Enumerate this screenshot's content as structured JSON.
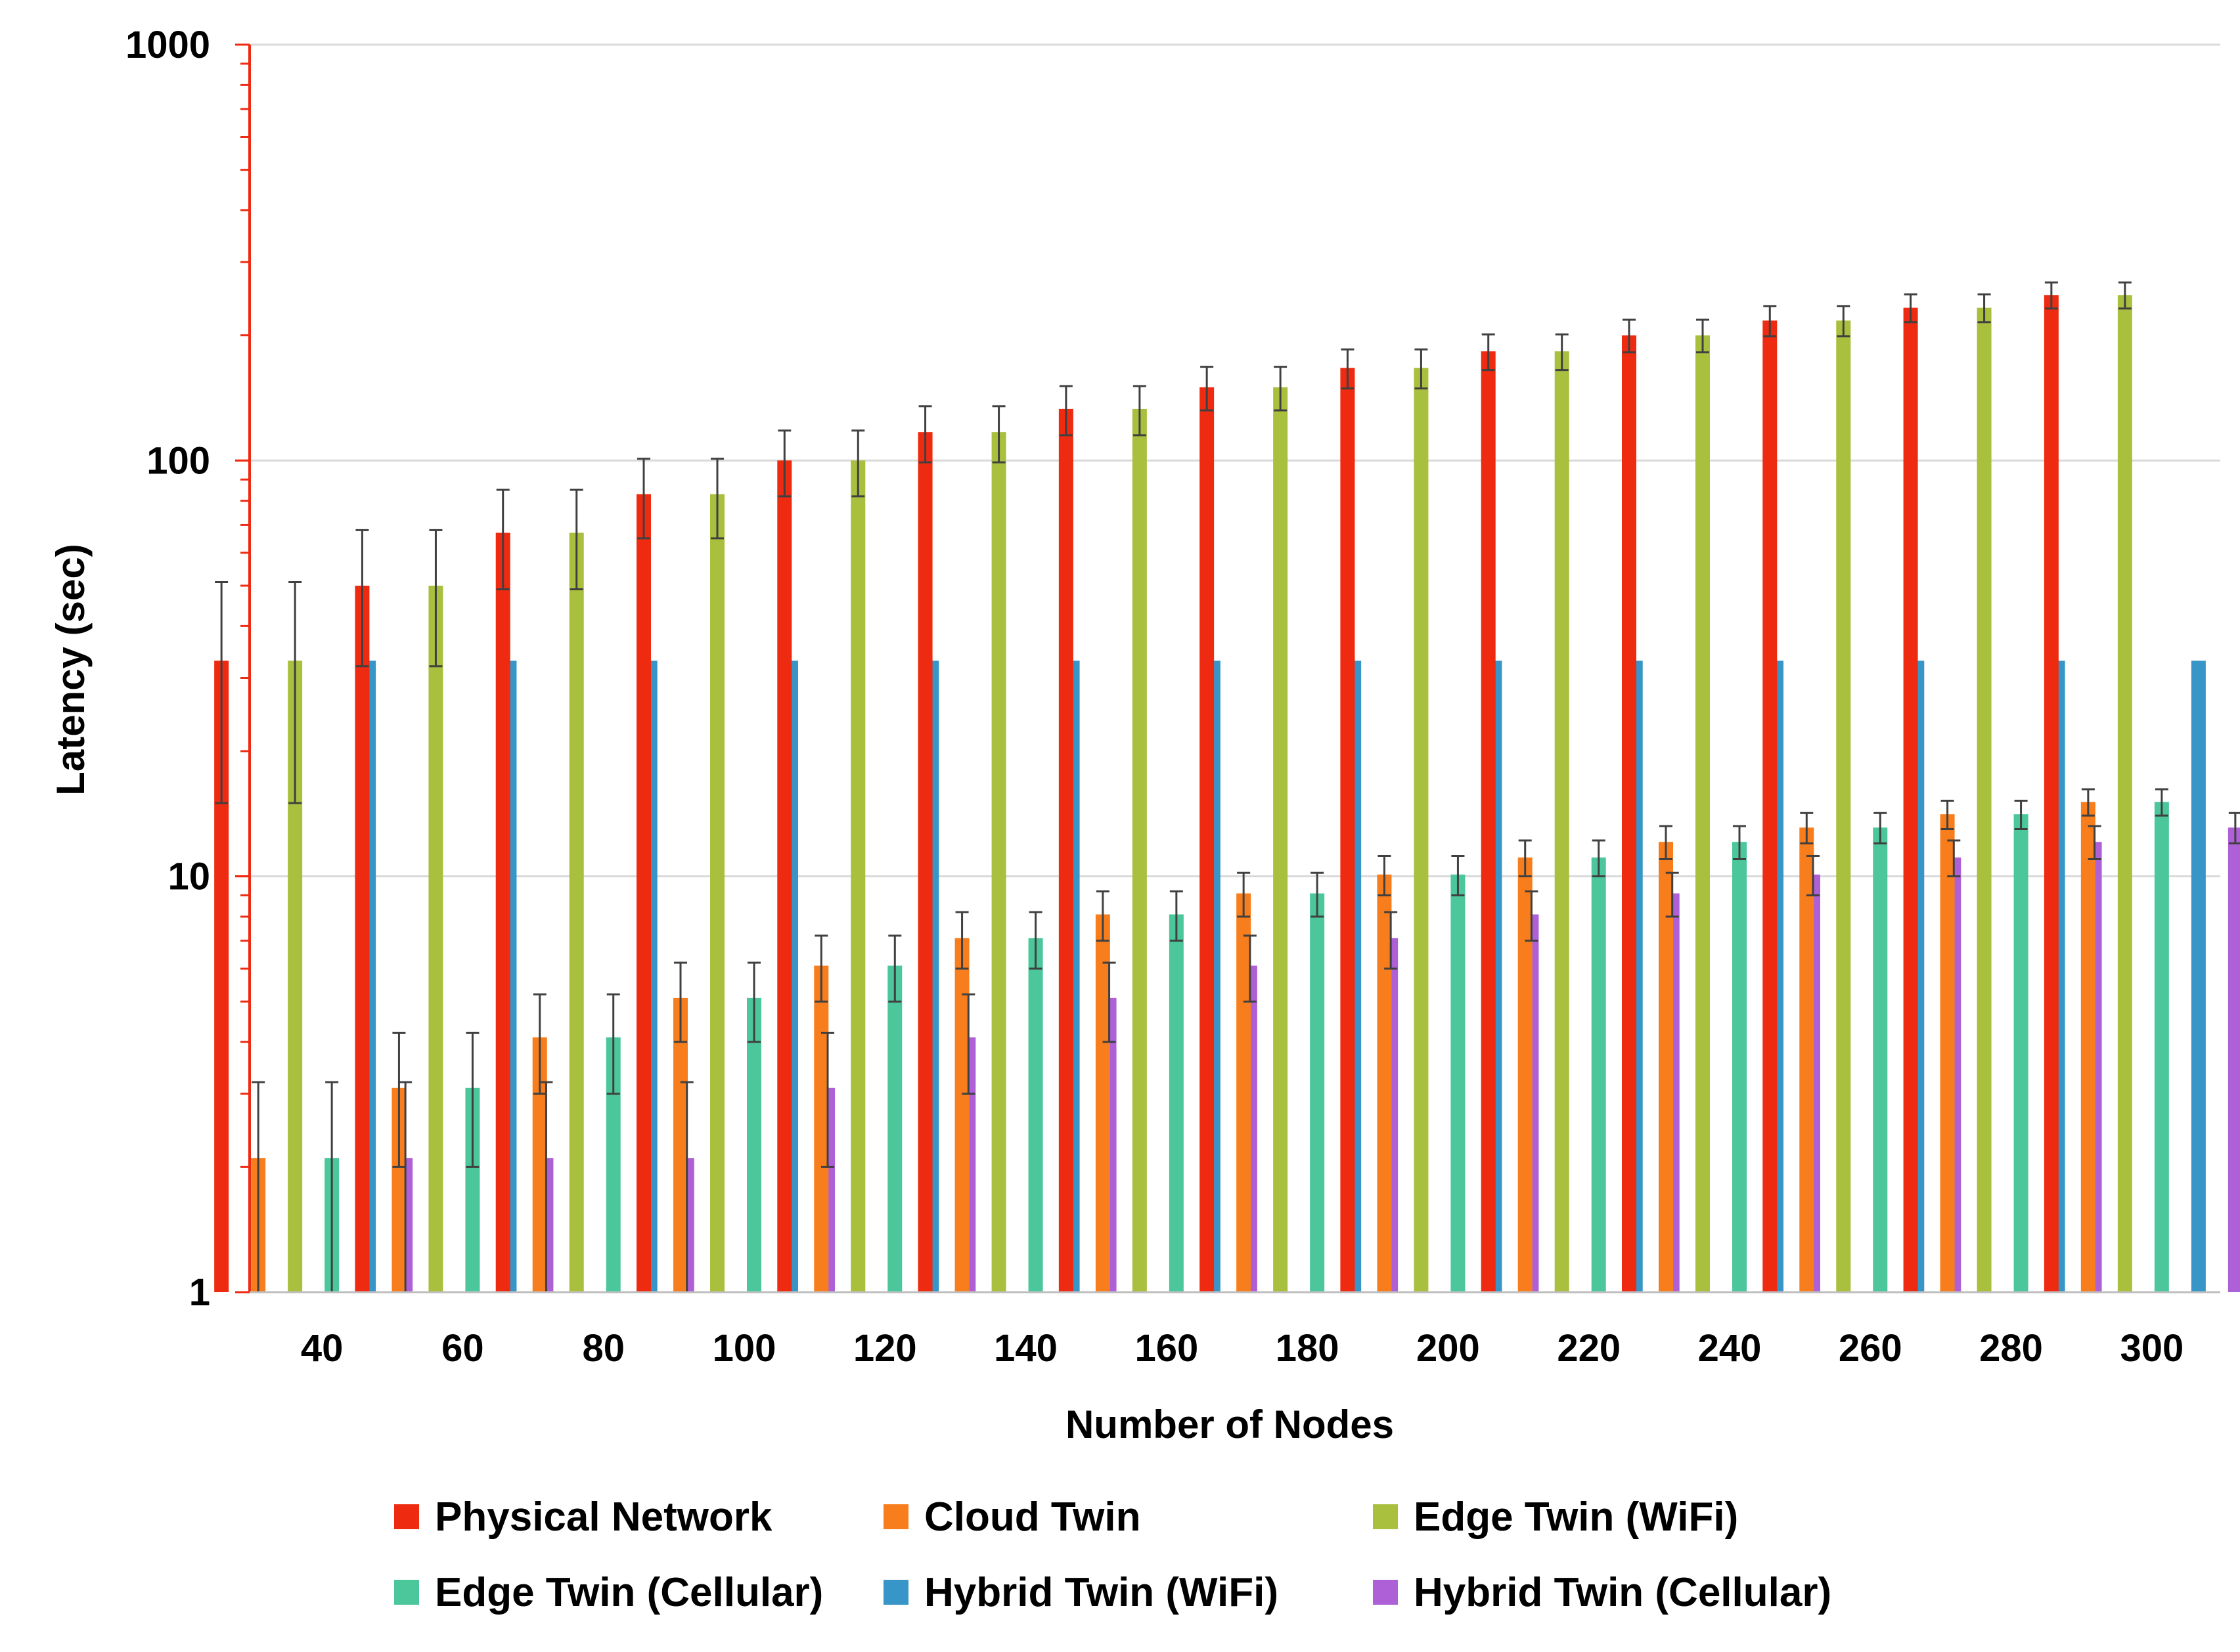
{
  "chart_data": {
    "type": "bar",
    "scale": "log",
    "xlabel": "Number of Nodes",
    "ylabel": "Latency (sec)",
    "ylim": [
      1,
      1000
    ],
    "yticks": [
      1,
      10,
      100,
      1000
    ],
    "grid": true,
    "legend_position": "bottom",
    "categories": [
      "40",
      "60",
      "80",
      "100",
      "120",
      "140",
      "160",
      "180",
      "200",
      "220",
      "240",
      "260",
      "280",
      "300"
    ],
    "series": [
      {
        "name": "Physical Network",
        "color": "#EE2A11",
        "values": [
          33,
          50,
          67,
          83,
          100,
          117,
          133,
          150,
          167,
          183,
          200,
          217,
          233,
          250
        ],
        "error": [
          18,
          18,
          18,
          18,
          18,
          18,
          18,
          18,
          18,
          18,
          18,
          18,
          18,
          18
        ]
      },
      {
        "name": "Cloud Twin",
        "color": "#F87E1D",
        "values": [
          2.1,
          3.1,
          4.1,
          5.1,
          6.1,
          7.1,
          8.1,
          9.1,
          10.1,
          11.1,
          12.1,
          13.1,
          14.1,
          15.1
        ],
        "error": [
          1.1,
          1.1,
          1.1,
          1.1,
          1.1,
          1.1,
          1.1,
          1.1,
          1.1,
          1.1,
          1.1,
          1.1,
          1.1,
          1.1
        ]
      },
      {
        "name": "Edge Twin (WiFi)",
        "color": "#A9BF3E",
        "values": [
          33,
          50,
          67,
          83,
          100,
          117,
          133,
          150,
          167,
          183,
          200,
          217,
          233,
          250
        ],
        "error": [
          18,
          18,
          18,
          18,
          18,
          18,
          18,
          18,
          18,
          18,
          18,
          18,
          18,
          18
        ]
      },
      {
        "name": "Edge Twin (Cellular)",
        "color": "#4BC79B",
        "values": [
          2.1,
          3.1,
          4.1,
          5.1,
          6.1,
          7.1,
          8.1,
          9.1,
          10.1,
          11.1,
          12.1,
          13.1,
          14.1,
          15.1
        ],
        "error": [
          1.1,
          1.1,
          1.1,
          1.1,
          1.1,
          1.1,
          1.1,
          1.1,
          1.1,
          1.1,
          1.1,
          1.1,
          1.1,
          1.1
        ]
      },
      {
        "name": "Hybrid Twin (WiFi)",
        "color": "#3895C8",
        "values": [
          33,
          33,
          33,
          33,
          33,
          33,
          33,
          33,
          33,
          33,
          33,
          33,
          33,
          33
        ],
        "error": null
      },
      {
        "name": "Hybrid Twin (Cellular)",
        "color": "#AE60D6",
        "values": [
          2.1,
          2.1,
          2.1,
          3.1,
          4.1,
          5.1,
          6.1,
          7.1,
          8.1,
          9.1,
          10.1,
          11.1,
          12.1,
          13.1
        ],
        "error": [
          1.1,
          1.1,
          1.1,
          1.1,
          1.1,
          1.1,
          1.1,
          1.1,
          1.1,
          1.1,
          1.1,
          1.1,
          1.1,
          1.1
        ]
      }
    ]
  }
}
